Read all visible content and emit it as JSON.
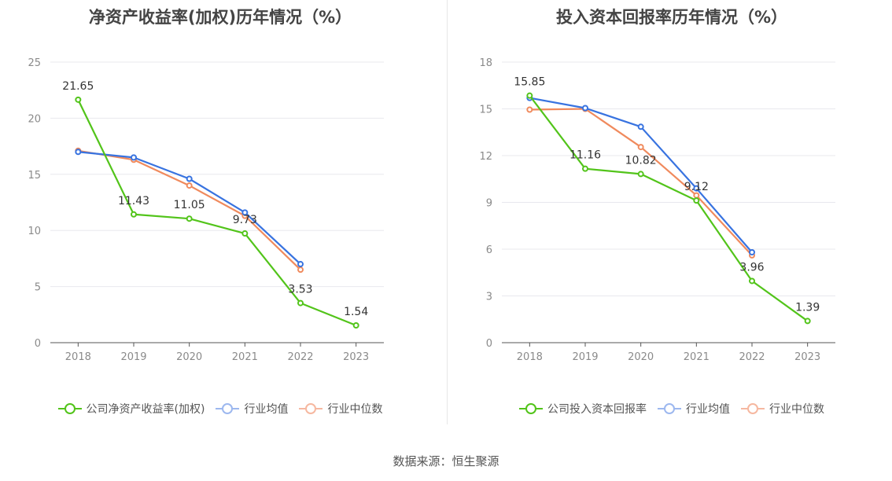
{
  "source_text": "数据来源：恒生聚源",
  "colors": {
    "company": "#52c41a",
    "avg": "#3873e0",
    "median": "#f08a5d",
    "grid": "#e8e8ee",
    "axis": "#555555"
  },
  "chart_data": [
    {
      "type": "line",
      "title": "净资产收益率(加权)历年情况（%）",
      "categories": [
        "2018",
        "2019",
        "2020",
        "2021",
        "2022",
        "2023"
      ],
      "ylim": [
        0,
        25
      ],
      "yticks": [
        0,
        5,
        10,
        15,
        20,
        25
      ],
      "grid": true,
      "legend_position": "bottom",
      "series": [
        {
          "name": "公司净资产收益率(加权)",
          "values": [
            21.65,
            11.43,
            11.05,
            9.73,
            3.53,
            1.54
          ],
          "labels": [
            "21.65",
            "11.43",
            "11.05",
            "9.73",
            "3.53",
            "1.54"
          ]
        },
        {
          "name": "行业均值",
          "values": [
            17.0,
            16.5,
            14.6,
            11.6,
            7.0,
            null
          ]
        },
        {
          "name": "行业中位数",
          "values": [
            17.1,
            16.3,
            14.0,
            11.3,
            6.5,
            null
          ]
        }
      ]
    },
    {
      "type": "line",
      "title": "投入资本回报率历年情况（%）",
      "categories": [
        "2018",
        "2019",
        "2020",
        "2021",
        "2022",
        "2023"
      ],
      "ylim": [
        0,
        18
      ],
      "yticks": [
        0,
        3,
        6,
        9,
        12,
        15,
        18
      ],
      "grid": true,
      "legend_position": "bottom",
      "series": [
        {
          "name": "公司投入资本回报率",
          "values": [
            15.85,
            11.16,
            10.82,
            9.12,
            3.96,
            1.39
          ],
          "labels": [
            "15.85",
            "11.16",
            "10.82",
            "9.12",
            "3.96",
            "1.39"
          ]
        },
        {
          "name": "行业均值",
          "values": [
            15.7,
            15.05,
            13.85,
            9.9,
            5.8,
            null
          ]
        },
        {
          "name": "行业中位数",
          "values": [
            14.95,
            15.0,
            12.55,
            9.45,
            5.6,
            null
          ]
        }
      ]
    }
  ]
}
